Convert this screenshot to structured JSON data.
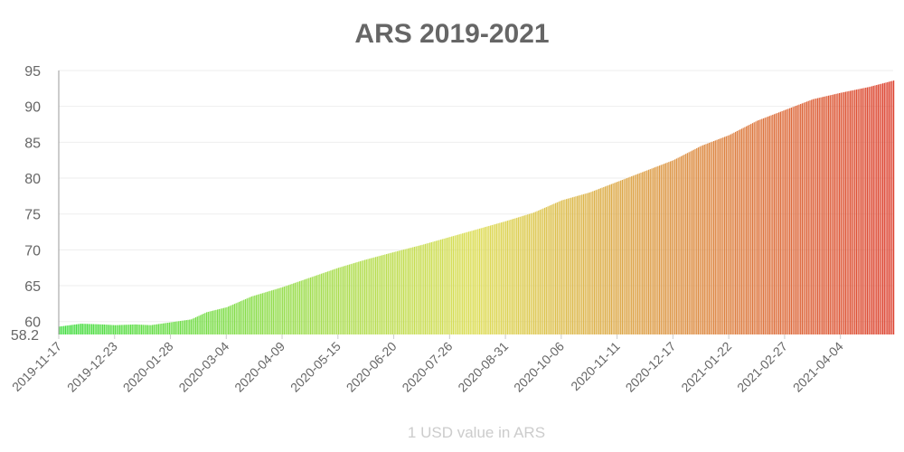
{
  "chart_data": {
    "type": "bar",
    "title": "ARS 2019-2021",
    "xlabel": "1 USD value in ARS",
    "ylabel": "",
    "ylim": [
      58.2,
      95
    ],
    "y_ticks": [
      95,
      90,
      85,
      80,
      75,
      70,
      65,
      60,
      58.2
    ],
    "x_tick_labels": [
      "2019-11-17",
      "2019-12-23",
      "2020-01-28",
      "2020-03-04",
      "2020-04-09",
      "2020-05-15",
      "2020-06-20",
      "2020-07-26",
      "2020-08-31",
      "2020-10-06",
      "2020-11-11",
      "2020-12-17",
      "2021-01-22",
      "2021-02-27",
      "2021-04-04"
    ],
    "date_range": [
      "2019-11-17",
      "2021-05-08"
    ],
    "grid": true,
    "legend": "none",
    "colors": {
      "start": "#44dd44",
      "middle": "#dddd55",
      "end": "#dd4433"
    },
    "series": [
      {
        "values": [
          [
            "2019-11-17",
            59.3
          ],
          [
            "2019-12-01",
            59.7
          ],
          [
            "2019-12-15",
            59.6
          ],
          [
            "2019-12-23",
            59.5
          ],
          [
            "2020-01-05",
            59.6
          ],
          [
            "2020-01-15",
            59.5
          ],
          [
            "2020-01-28",
            59.9
          ],
          [
            "2020-02-10",
            60.3
          ],
          [
            "2020-02-20",
            61.3
          ],
          [
            "2020-03-04",
            62.0
          ],
          [
            "2020-03-20",
            63.5
          ],
          [
            "2020-04-09",
            64.8
          ],
          [
            "2020-04-25",
            66.0
          ],
          [
            "2020-05-15",
            67.5
          ],
          [
            "2020-06-01",
            68.6
          ],
          [
            "2020-06-20",
            69.7
          ],
          [
            "2020-07-08",
            70.7
          ],
          [
            "2020-07-26",
            71.8
          ],
          [
            "2020-08-13",
            72.9
          ],
          [
            "2020-08-31",
            74.0
          ],
          [
            "2020-09-18",
            75.2
          ],
          [
            "2020-10-06",
            76.9
          ],
          [
            "2020-10-24",
            78.0
          ],
          [
            "2020-11-11",
            79.5
          ],
          [
            "2020-11-29",
            81.0
          ],
          [
            "2020-12-17",
            82.5
          ],
          [
            "2021-01-04",
            84.5
          ],
          [
            "2021-01-22",
            86.0
          ],
          [
            "2021-02-09",
            88.0
          ],
          [
            "2021-02-27",
            89.5
          ],
          [
            "2021-03-17",
            91.0
          ],
          [
            "2021-04-04",
            91.9
          ],
          [
            "2021-04-22",
            92.7
          ],
          [
            "2021-05-08",
            93.6
          ]
        ]
      }
    ]
  }
}
